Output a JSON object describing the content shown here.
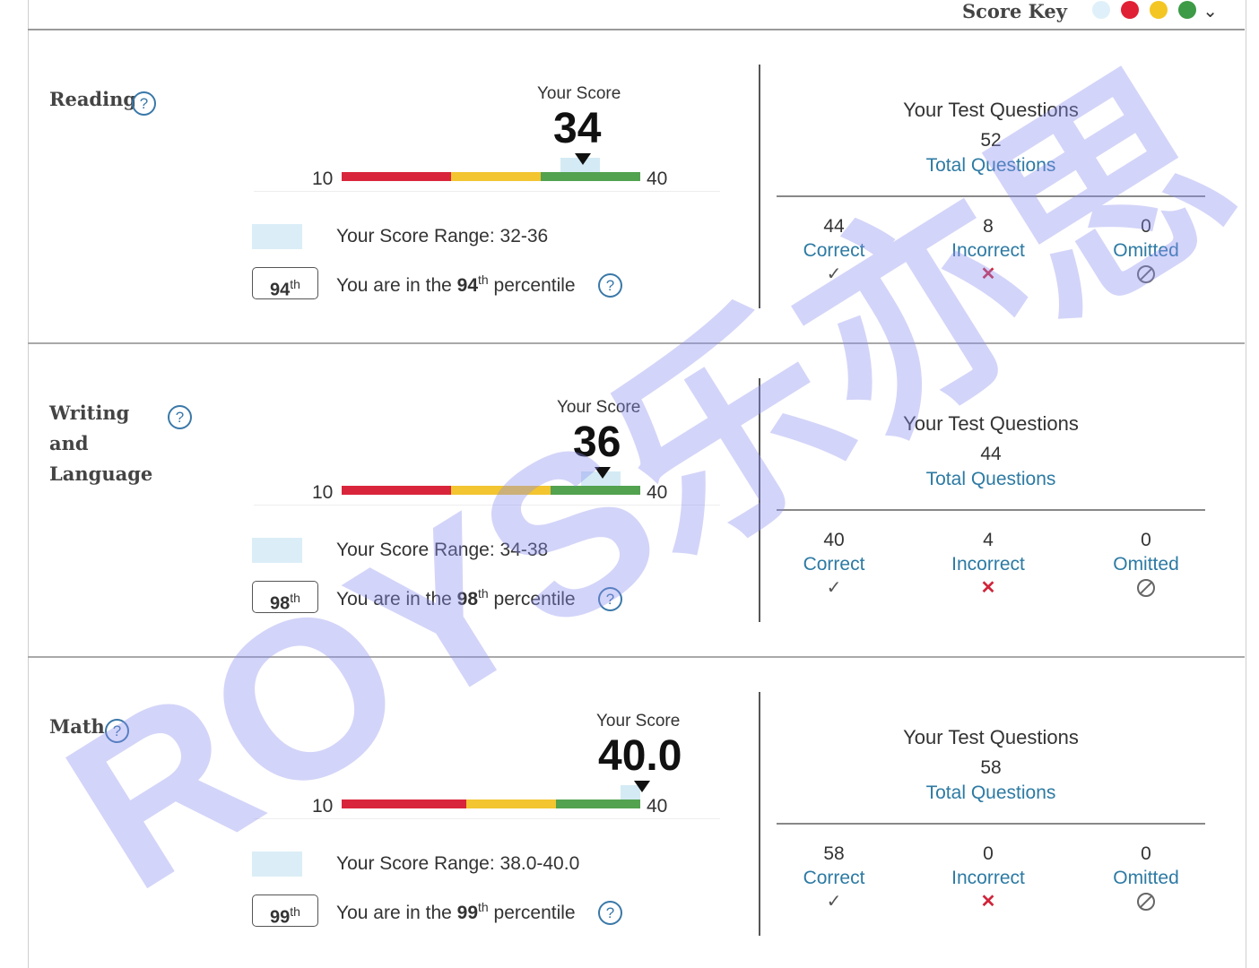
{
  "score_key": {
    "label": "Score Key",
    "dots": [
      "#dff0fa",
      "#e02035",
      "#f3c623",
      "#3d9a46"
    ]
  },
  "sections": [
    {
      "title": "Reading",
      "your_score_label": "Your Score",
      "score": "34",
      "bar_min": "10",
      "bar_max": "40",
      "score_range": "Your Score Range: 32-36",
      "percentile": "94",
      "percentile_text_pre": "You are in the ",
      "percentile_text_post": " percentile",
      "tq_title": "Your Test Questions",
      "tq_total": "52",
      "tq_total_label": "Total Questions",
      "correct": "44",
      "correct_label": "Correct",
      "incorrect": "8",
      "incorrect_label": "Incorrect",
      "omitted": "0",
      "omitted_label": "Omitted"
    },
    {
      "title": "Writing and Language",
      "your_score_label": "Your Score",
      "score": "36",
      "bar_min": "10",
      "bar_max": "40",
      "score_range": "Your Score Range: 34-38",
      "percentile": "98",
      "percentile_text_pre": "You are in the ",
      "percentile_text_post": " percentile",
      "tq_title": "Your Test Questions",
      "tq_total": "44",
      "tq_total_label": "Total Questions",
      "correct": "40",
      "correct_label": "Correct",
      "incorrect": "4",
      "incorrect_label": "Incorrect",
      "omitted": "0",
      "omitted_label": "Omitted"
    },
    {
      "title": "Math",
      "your_score_label": "Your Score",
      "score": "40.0",
      "bar_min": "10",
      "bar_max": "40",
      "score_range": "Your Score Range: 38.0-40.0",
      "percentile": "99",
      "percentile_text_pre": "You are in the ",
      "percentile_text_post": " percentile",
      "tq_title": "Your Test Questions",
      "tq_total": "58",
      "tq_total_label": "Total Questions",
      "correct": "58",
      "correct_label": "Correct",
      "incorrect": "0",
      "incorrect_label": "Incorrect",
      "omitted": "0",
      "omitted_label": "Omitted"
    }
  ],
  "watermark": {
    "text": "ROYS乐亦思",
    "color": "#8c8ff0"
  }
}
